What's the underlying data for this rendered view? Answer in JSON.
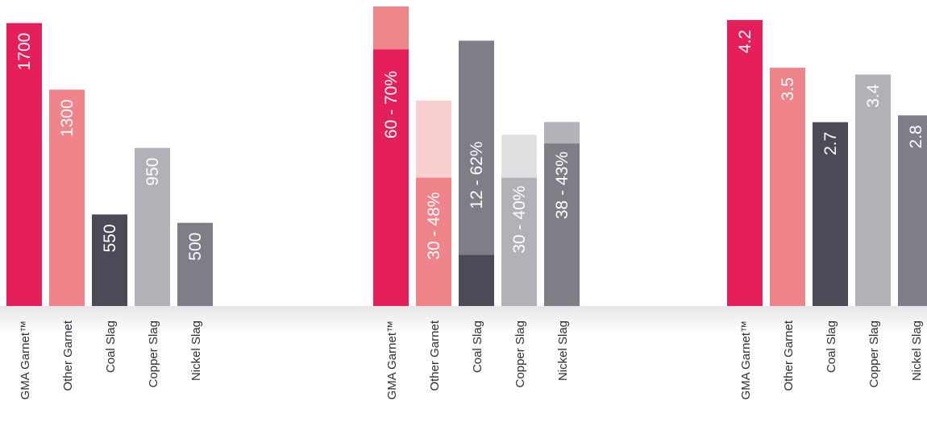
{
  "colors": {
    "gma_garnet": "#e41f5a",
    "gma_garnet_light": "#ef868a",
    "other_garnet": "#ef858a",
    "other_garnet_light": "#f9cfd0",
    "coal_slag": "#4a4b57",
    "coal_slag_upper": "#807d86",
    "copper_slag": "#b3b1b8",
    "copper_slag_light": "#e0dfe2",
    "nickel_slag": "#807d86",
    "nickel_slag_light": "#b5b3b9",
    "label_text": "#2f2f38",
    "floor_shadow": "#ececef"
  },
  "chart_data": [
    {
      "type": "bar",
      "title": "",
      "categories": [
        "GMA Garnet™",
        "Other Garnet",
        "Coal Slag",
        "Copper Slag",
        "Nickel Slag"
      ],
      "values": [
        1700,
        1300,
        550,
        950,
        500
      ],
      "value_labels": [
        "1700",
        "1300",
        "550",
        "950",
        "500"
      ],
      "color_keys": [
        "gma_garnet",
        "other_garnet",
        "coal_slag",
        "copper_slag",
        "nickel_slag"
      ],
      "ylim": [
        0,
        1800
      ]
    },
    {
      "type": "bar",
      "subtype": "range",
      "title": "",
      "categories": [
        "GMA Garnet™",
        "Other Garnet",
        "Coal Slag",
        "Copper Slag",
        "Nickel Slag"
      ],
      "ranges": [
        [
          60,
          70
        ],
        [
          30,
          48
        ],
        [
          12,
          62
        ],
        [
          30,
          40
        ],
        [
          38,
          43
        ]
      ],
      "value_labels": [
        "60 - 70%",
        "30 - 48%",
        "12 - 62%",
        "30 - 40%",
        "38 - 43%"
      ],
      "lower_color_keys": [
        "gma_garnet",
        "other_garnet",
        "coal_slag",
        "copper_slag",
        "nickel_slag"
      ],
      "upper_color_keys": [
        "gma_garnet_light",
        "other_garnet_light",
        "coal_slag_upper",
        "copper_slag_light",
        "nickel_slag_light"
      ],
      "ylim": [
        0,
        70
      ]
    },
    {
      "type": "bar",
      "title": "",
      "categories": [
        "GMA Garnet™",
        "Other Garnet",
        "Coal Slag",
        "Copper Slag",
        "Nickel Slag"
      ],
      "values": [
        4.2,
        3.5,
        2.7,
        3.4,
        2.8
      ],
      "value_labels": [
        "4.2",
        "3.5",
        "2.7",
        "3.4",
        "2.8"
      ],
      "color_keys": [
        "gma_garnet",
        "other_garnet",
        "coal_slag",
        "copper_slag",
        "nickel_slag"
      ],
      "ylim": [
        0,
        4.4
      ]
    }
  ]
}
